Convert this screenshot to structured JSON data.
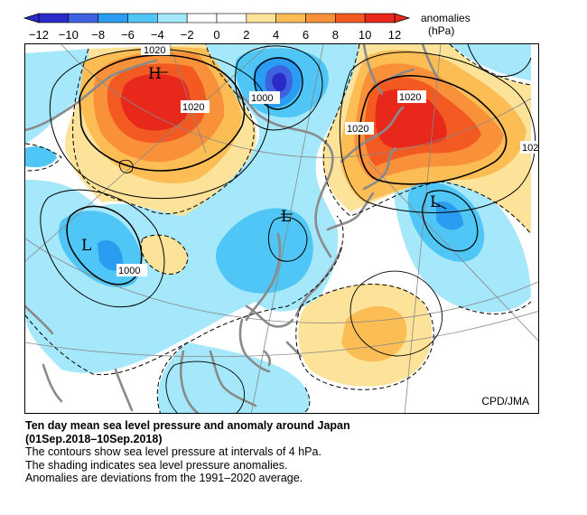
{
  "colorbar": {
    "title_line1": "anomalies",
    "title_line2": "(hPa)",
    "ticks": [
      "−12",
      "−10",
      "−8",
      "−6",
      "−4",
      "−2",
      "0",
      "2",
      "4",
      "6",
      "8",
      "10",
      "12"
    ],
    "colors": [
      "#2a2ac8",
      "#3f63e0",
      "#2a9cf2",
      "#4fc6f5",
      "#a6e8fb",
      "#ffffff",
      "#ffffff",
      "#fde39a",
      "#fdbd55",
      "#f9913a",
      "#f25a22",
      "#e8281a"
    ]
  },
  "map": {
    "credit": "CPD/JMA",
    "contour_labels": [
      "1020",
      "1020",
      "1000",
      "1020",
      "1020",
      "102",
      "1000"
    ],
    "pressure_centers": [
      "H",
      "L",
      "L",
      "L"
    ]
  },
  "caption": {
    "title_line1": "Ten day mean sea level pressure and anomaly around Japan",
    "title_line2": "(01Sep.2018–10Sep.2018)",
    "line1": "The contours show sea level pressure at intervals of 4 hPa.",
    "line2": "The shading indicates sea level pressure anomalies.",
    "line3": "Anomalies are deviations from the 1991–2020 average."
  }
}
